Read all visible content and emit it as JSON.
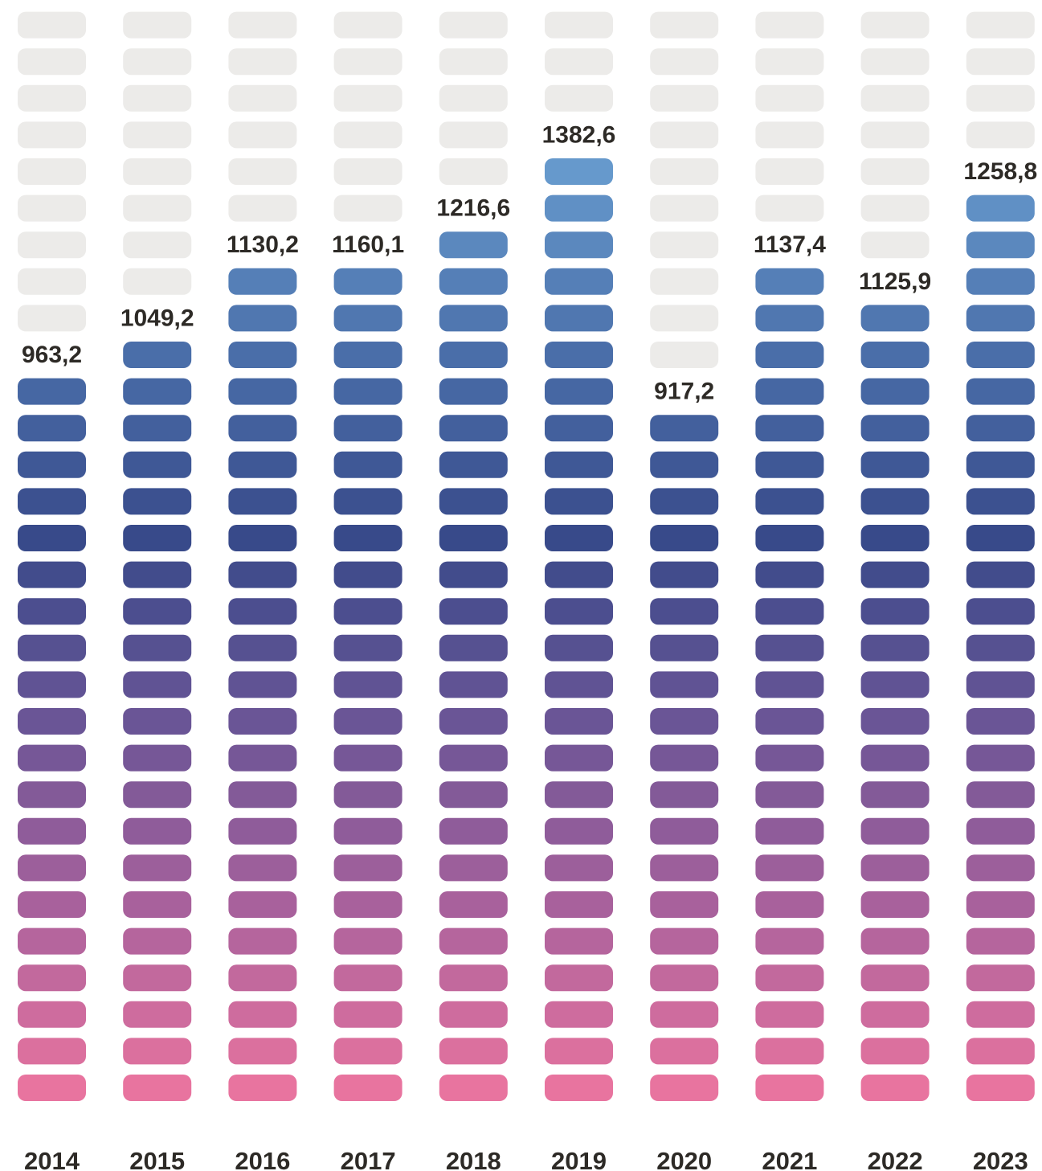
{
  "chart_data": {
    "type": "bar",
    "categories": [
      "2014",
      "2015",
      "2016",
      "2017",
      "2018",
      "2019",
      "2020",
      "2021",
      "2022",
      "2023"
    ],
    "values": [
      963.2,
      1049.2,
      1130.2,
      1160.1,
      1216.6,
      1382.6,
      917.2,
      1137.4,
      1125.9,
      1258.8
    ],
    "value_labels": [
      "963,2",
      "1049,2",
      "1130,2",
      "1160,1",
      "1216,6",
      "1382,6",
      "917,2",
      "1137,4",
      "1125,9",
      "1258,8"
    ],
    "filled_units": [
      20,
      21,
      23,
      23,
      24,
      26,
      19,
      23,
      22,
      25
    ],
    "total_units": 30,
    "title": "",
    "xlabel": "",
    "ylabel": "",
    "grid": false,
    "legend": "none",
    "style": "pictorial stacked-pill columns",
    "colors": {
      "empty": "#ecebe9",
      "gradient_stops": [
        "#e8749f",
        "#a8619c",
        "#6a5596",
        "#384a8a",
        "#4a6ea9",
        "#6699cc"
      ],
      "text": "#2d2a26"
    }
  }
}
